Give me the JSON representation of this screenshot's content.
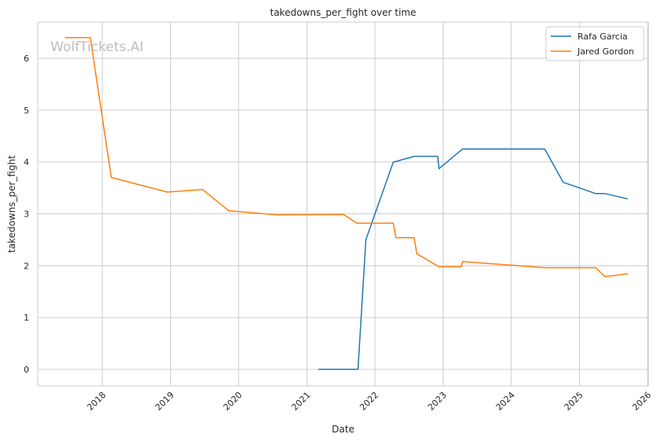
{
  "watermark": "WolfTickets.AI",
  "chart_data": {
    "type": "line",
    "title": "takedowns_per_fight over time",
    "xlabel": "Date",
    "ylabel": "takedowns_per_fight",
    "x_type": "date",
    "xlim": [
      "2017-01-20",
      "2026-01-05"
    ],
    "ylim": [
      -0.32,
      6.7
    ],
    "x_ticks": [
      "2018",
      "2019",
      "2020",
      "2021",
      "2022",
      "2023",
      "2024",
      "2025",
      "2026"
    ],
    "y_ticks": [
      "0",
      "1",
      "2",
      "3",
      "4",
      "5",
      "6"
    ],
    "grid": true,
    "legend_position": "top-right",
    "colors": {
      "Rafa Garcia": "#1f77b4",
      "Jared Gordon": "#ff7f0e"
    },
    "series": [
      {
        "name": "Rafa Garcia",
        "color": "#1f77b4",
        "points": [
          [
            "2021-03-06",
            0.0
          ],
          [
            "2021-10-02",
            0.0
          ],
          [
            "2021-11-13",
            2.5
          ],
          [
            "2022-04-09",
            4.0
          ],
          [
            "2022-04-23",
            4.01
          ],
          [
            "2022-07-30",
            4.11
          ],
          [
            "2022-12-03",
            4.11
          ],
          [
            "2022-12-10",
            3.87
          ],
          [
            "2023-04-15",
            4.25
          ],
          [
            "2024-06-29",
            4.25
          ],
          [
            "2024-10-05",
            3.61
          ],
          [
            "2025-03-29",
            3.39
          ],
          [
            "2025-05-17",
            3.39
          ],
          [
            "2025-09-13",
            3.29
          ]
        ]
      },
      {
        "name": "Jared Gordon",
        "color": "#ff7f0e",
        "points": [
          [
            "2017-06-17",
            6.4
          ],
          [
            "2017-10-28",
            6.4
          ],
          [
            "2018-02-18",
            3.7
          ],
          [
            "2018-12-15",
            3.42
          ],
          [
            "2019-06-22",
            3.47
          ],
          [
            "2019-11-09",
            3.06
          ],
          [
            "2020-07-25",
            2.98
          ],
          [
            "2021-07-17",
            2.99
          ],
          [
            "2021-09-25",
            2.82
          ],
          [
            "2022-04-09",
            2.82
          ],
          [
            "2022-04-23",
            2.54
          ],
          [
            "2022-07-30",
            2.54
          ],
          [
            "2022-08-13",
            2.23
          ],
          [
            "2022-12-10",
            1.98
          ],
          [
            "2023-04-08",
            1.98
          ],
          [
            "2023-04-15",
            2.08
          ],
          [
            "2024-06-29",
            1.96
          ],
          [
            "2025-03-29",
            1.96
          ],
          [
            "2025-05-17",
            1.79
          ],
          [
            "2025-09-13",
            1.84
          ]
        ]
      }
    ]
  }
}
